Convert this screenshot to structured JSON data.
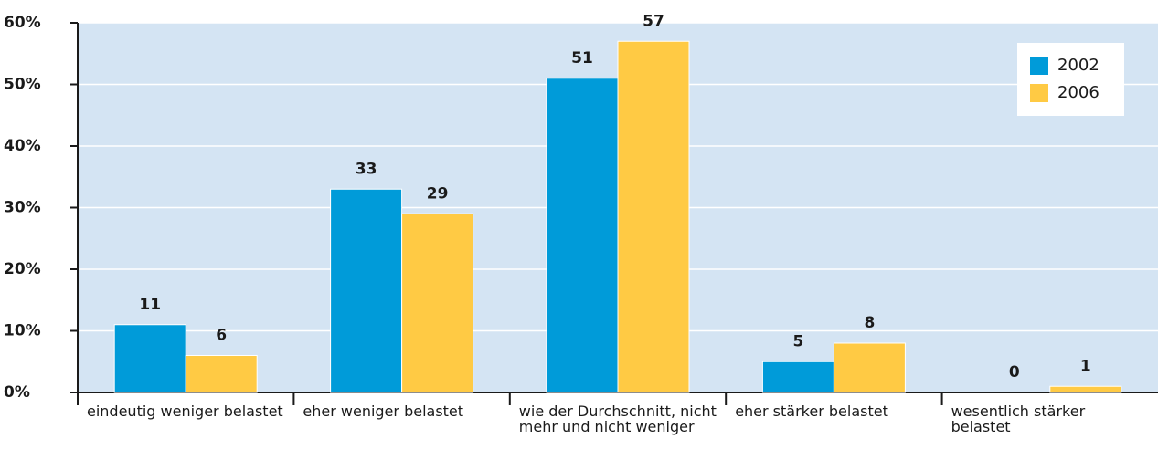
{
  "chart_data": {
    "type": "bar",
    "categories": [
      "eindeutig weniger belastet",
      "eher weniger belastet",
      "wie der Durchschnitt, nicht mehr und nicht weniger",
      "eher stärker belastet",
      "wesentlich stärker belastet"
    ],
    "series": [
      {
        "name": "2002",
        "color": "#009bd9",
        "values": [
          11,
          33,
          51,
          5,
          0
        ]
      },
      {
        "name": "2006",
        "color": "#ffca44",
        "values": [
          6,
          29,
          57,
          8,
          1
        ]
      }
    ],
    "ylim": [
      0,
      60
    ],
    "yticks": [
      {
        "value": 0,
        "label": "0%"
      },
      {
        "value": 10,
        "label": "10%"
      },
      {
        "value": 20,
        "label": "20%"
      },
      {
        "value": 30,
        "label": "30%"
      },
      {
        "value": 40,
        "label": "40%"
      },
      {
        "value": 50,
        "label": "50%"
      },
      {
        "value": 60,
        "label": "60%"
      }
    ],
    "grid": true,
    "legend": "upper right"
  }
}
